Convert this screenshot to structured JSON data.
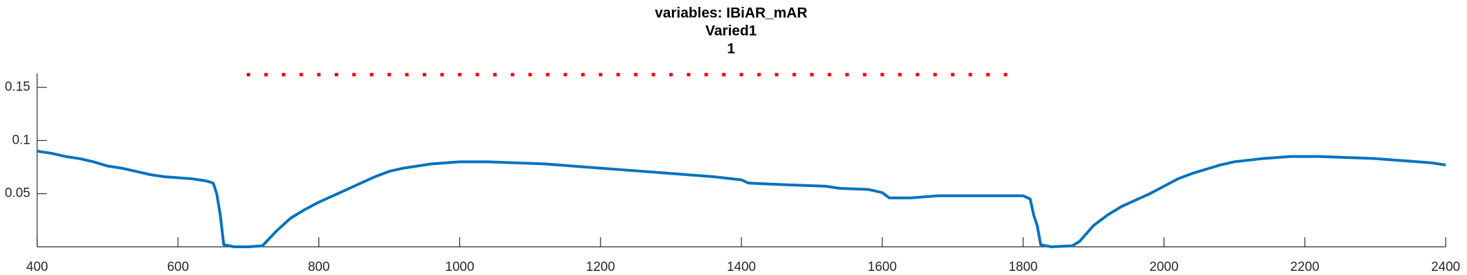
{
  "chart_data": {
    "type": "line",
    "title": "variables: IBiAR_mAR",
    "subtitle": "Varied1",
    "subtitle2": "1",
    "xlim": [
      400,
      2400
    ],
    "xticks": [
      400,
      600,
      800,
      1000,
      1200,
      1400,
      1600,
      1800,
      2000,
      2200,
      2400
    ],
    "ylim": [
      0,
      0.163
    ],
    "yticks": [
      0.05,
      0.1,
      0.15
    ],
    "series": [
      {
        "color": "#0072bd",
        "line_style": "solid",
        "x": [
          400,
          420,
          440,
          460,
          480,
          500,
          520,
          540,
          560,
          580,
          600,
          620,
          640,
          650,
          655,
          660,
          665,
          680,
          700,
          720,
          740,
          760,
          780,
          800,
          820,
          840,
          860,
          880,
          900,
          920,
          940,
          960,
          980,
          1000,
          1040,
          1080,
          1120,
          1160,
          1200,
          1240,
          1280,
          1320,
          1360,
          1400,
          1410,
          1440,
          1480,
          1520,
          1540,
          1580,
          1600,
          1610,
          1640,
          1680,
          1720,
          1760,
          1800,
          1810,
          1815,
          1820,
          1825,
          1840,
          1870,
          1880,
          1900,
          1920,
          1940,
          1960,
          1980,
          2000,
          2020,
          2040,
          2060,
          2080,
          2100,
          2140,
          2180,
          2220,
          2260,
          2300,
          2340,
          2380,
          2400
        ],
        "values": [
          0.09,
          0.088,
          0.085,
          0.083,
          0.08,
          0.076,
          0.074,
          0.071,
          0.068,
          0.066,
          0.065,
          0.064,
          0.062,
          0.06,
          0.05,
          0.03,
          0.002,
          0,
          0,
          0.001,
          0.015,
          0.027,
          0.035,
          0.042,
          0.048,
          0.054,
          0.06,
          0.066,
          0.071,
          0.074,
          0.076,
          0.078,
          0.079,
          0.08,
          0.08,
          0.079,
          0.078,
          0.076,
          0.074,
          0.072,
          0.07,
          0.068,
          0.066,
          0.063,
          0.06,
          0.059,
          0.058,
          0.057,
          0.055,
          0.054,
          0.051,
          0.046,
          0.046,
          0.048,
          0.048,
          0.048,
          0.048,
          0.045,
          0.03,
          0.02,
          0.002,
          0,
          0.001,
          0.005,
          0.02,
          0.03,
          0.038,
          0.044,
          0.05,
          0.057,
          0.064,
          0.069,
          0.073,
          0.077,
          0.08,
          0.083,
          0.085,
          0.085,
          0.084,
          0.083,
          0.081,
          0.079,
          0.077
        ]
      },
      {
        "color": "#ff0000",
        "line_style": "dotted",
        "x": [
          700,
          725,
          750,
          775,
          800,
          825,
          850,
          875,
          900,
          925,
          950,
          975,
          1000,
          1025,
          1050,
          1075,
          1100,
          1125,
          1150,
          1175,
          1200,
          1225,
          1250,
          1275,
          1300,
          1325,
          1350,
          1375,
          1400,
          1425,
          1450,
          1475,
          1500,
          1525,
          1550,
          1575,
          1600,
          1625,
          1650,
          1675,
          1700,
          1725,
          1750,
          1775
        ],
        "values": [
          0.162,
          0.162,
          0.162,
          0.162,
          0.162,
          0.162,
          0.162,
          0.162,
          0.162,
          0.162,
          0.162,
          0.162,
          0.162,
          0.162,
          0.162,
          0.162,
          0.162,
          0.162,
          0.162,
          0.162,
          0.162,
          0.162,
          0.162,
          0.162,
          0.162,
          0.162,
          0.162,
          0.162,
          0.162,
          0.162,
          0.162,
          0.162,
          0.162,
          0.162,
          0.162,
          0.162,
          0.162,
          0.162,
          0.162,
          0.162,
          0.162,
          0.162,
          0.162,
          0.162
        ]
      }
    ]
  }
}
